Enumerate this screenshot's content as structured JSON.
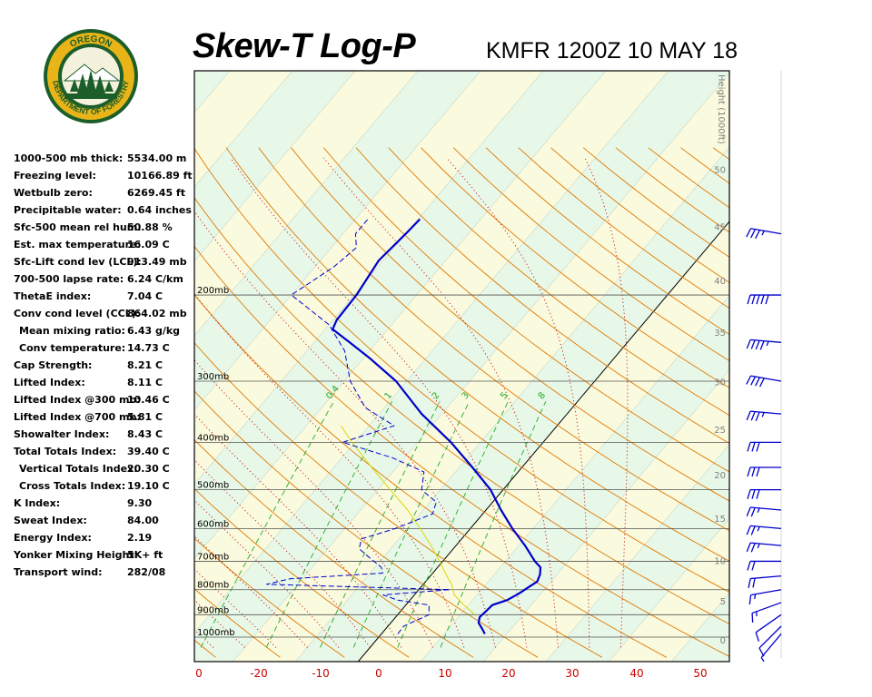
{
  "logo": {
    "text_top": "OREGON",
    "text_bottom": "DEPARTMENT OF FORESTRY",
    "colors": {
      "ring": "#1b5e2a",
      "gold": "#e8b418",
      "sky": "#f4f1dc"
    }
  },
  "header": {
    "title": "Skew-T Log-P",
    "subtitle": "KMFR 1200Z 10 MAY 18"
  },
  "indices": [
    {
      "label": "1000-500 mb thick:",
      "value": "5534.00 m"
    },
    {
      "label": "Freezing level:",
      "value": "10166.89 ft"
    },
    {
      "label": "Wetbulb zero:",
      "value": "6269.45 ft"
    },
    {
      "label": "Precipitable water:",
      "value": "0.64 inches"
    },
    {
      "label": "Sfc-500 mean rel hum:",
      "value": "50.88 %"
    },
    {
      "label": "Est. max temperature:",
      "value": "16.09 C"
    },
    {
      "label": "Sfc-Lift cond lev (LCL):",
      "value": "913.49 mb"
    },
    {
      "label": "700-500 lapse rate:",
      "value": "6.24 C/km"
    },
    {
      "label": "ThetaE index:",
      "value": "7.04 C"
    },
    {
      "label": "Conv cond level (CCL):",
      "value": "864.02 mb"
    },
    {
      "label": "Mean mixing ratio:",
      "value": "6.43 g/kg",
      "indent": true
    },
    {
      "label": "Conv temperature:",
      "value": "14.73 C",
      "indent": true
    },
    {
      "label": "Cap Strength:",
      "value": "8.21 C"
    },
    {
      "label": "Lifted Index:",
      "value": "8.11 C"
    },
    {
      "label": "Lifted Index @300 mb:",
      "value": "10.46 C"
    },
    {
      "label": "Lifted Index @700 mb:",
      "value": "5.81 C"
    },
    {
      "label": "Showalter Index:",
      "value": "8.43 C"
    },
    {
      "label": "Total Totals Index:",
      "value": "39.40 C"
    },
    {
      "label": "Vertical Totals Index:",
      "value": "20.30 C",
      "indent": true
    },
    {
      "label": "Cross Totals Index:",
      "value": "19.10 C",
      "indent": true
    },
    {
      "label": "K Index:",
      "value": "9.30"
    },
    {
      "label": "Sweat Index:",
      "value": "84.00"
    },
    {
      "label": "Energy Index:",
      "value": "2.19"
    },
    {
      "label": "Yonker Mixing Height:",
      "value": "5K+ ft"
    },
    {
      "label": "Transport wind:",
      "value": "282/08"
    }
  ],
  "chart_data": {
    "type": "line",
    "y_scale": "log-pressure",
    "pressure_levels": [
      {
        "p": 200,
        "label": "200mb"
      },
      {
        "p": 300,
        "label": "300mb"
      },
      {
        "p": 400,
        "label": "400mb"
      },
      {
        "p": 500,
        "label": "500mb"
      },
      {
        "p": 600,
        "label": "600mb"
      },
      {
        "p": 700,
        "label": "700mb"
      },
      {
        "p": 800,
        "label": "800mb"
      },
      {
        "p": 900,
        "label": "900mb"
      },
      {
        "p": 1000,
        "label": "1000mb"
      }
    ],
    "x_tick_labels": [
      "0",
      "-20",
      "-10",
      "0",
      "10",
      "20",
      "30",
      "40",
      "50"
    ],
    "height_axis_label": "Height (1000ft)",
    "height_ticks": [
      "0",
      "5",
      "10",
      "15",
      "20",
      "25",
      "30",
      "35",
      "40",
      "45",
      "50"
    ],
    "mixing_ratio_labels": [
      "0.4",
      "1",
      "2",
      "3",
      "5",
      "8"
    ],
    "series": [
      {
        "role": "temperature",
        "color": "#0000cc",
        "points": [
          {
            "p": 985,
            "t": 16.5
          },
          {
            "p": 960,
            "t": 15.3
          },
          {
            "p": 935,
            "t": 14.0
          },
          {
            "p": 910,
            "t": 13.4
          },
          {
            "p": 890,
            "t": 13.6
          },
          {
            "p": 860,
            "t": 13.8
          },
          {
            "p": 840,
            "t": 15.5
          },
          {
            "p": 815,
            "t": 16.5
          },
          {
            "p": 790,
            "t": 17.2
          },
          {
            "p": 770,
            "t": 17.8
          },
          {
            "p": 745,
            "t": 17.3
          },
          {
            "p": 720,
            "t": 16.4
          },
          {
            "p": 700,
            "t": 14.7
          },
          {
            "p": 650,
            "t": 11.0
          },
          {
            "p": 600,
            "t": 6.7
          },
          {
            "p": 550,
            "t": 2.4
          },
          {
            "p": 500,
            "t": -2.0
          },
          {
            "p": 450,
            "t": -7.9
          },
          {
            "p": 400,
            "t": -14.7
          },
          {
            "p": 350,
            "t": -23.2
          },
          {
            "p": 300,
            "t": -31.7
          },
          {
            "p": 270,
            "t": -38.8
          },
          {
            "p": 250,
            "t": -44.3
          },
          {
            "p": 235,
            "t": -48.8
          },
          {
            "p": 225,
            "t": -49.4
          },
          {
            "p": 200,
            "t": -49.6
          },
          {
            "p": 170,
            "t": -50.7
          },
          {
            "p": 150,
            "t": -50.0
          },
          {
            "p": 140,
            "t": -49.7
          }
        ]
      },
      {
        "role": "dewpoint",
        "color": "#0000cc",
        "points": [
          {
            "p": 985,
            "t": 2.6
          },
          {
            "p": 950,
            "t": 2.5
          },
          {
            "p": 900,
            "t": 5.0
          },
          {
            "p": 860,
            "t": 3.7
          },
          {
            "p": 840,
            "t": -2.0
          },
          {
            "p": 820,
            "t": -5.0
          },
          {
            "p": 800,
            "t": 5.0
          },
          {
            "p": 780,
            "t": -25.0
          },
          {
            "p": 760,
            "t": -22.0
          },
          {
            "p": 740,
            "t": -8.0
          },
          {
            "p": 720,
            "t": -9.0
          },
          {
            "p": 690,
            "t": -12.0
          },
          {
            "p": 660,
            "t": -15.0
          },
          {
            "p": 630,
            "t": -16.0
          },
          {
            "p": 600,
            "t": -12.0
          },
          {
            "p": 560,
            "t": -8.0
          },
          {
            "p": 530,
            "t": -9.0
          },
          {
            "p": 500,
            "t": -13.0
          },
          {
            "p": 460,
            "t": -15.0
          },
          {
            "p": 430,
            "t": -22.0
          },
          {
            "p": 400,
            "t": -32.0
          },
          {
            "p": 370,
            "t": -26.0
          },
          {
            "p": 340,
            "t": -33.0
          },
          {
            "p": 300,
            "t": -39.0
          },
          {
            "p": 260,
            "t": -44.0
          },
          {
            "p": 230,
            "t": -50.0
          },
          {
            "p": 200,
            "t": -60.0
          },
          {
            "p": 175,
            "t": -57.0
          },
          {
            "p": 160,
            "t": -56.0
          },
          {
            "p": 150,
            "t": -58.0
          },
          {
            "p": 140,
            "t": -58.0
          }
        ]
      },
      {
        "role": "parcel",
        "color": "#d8d800",
        "points": [
          {
            "p": 900,
            "t": 12.3
          },
          {
            "p": 860,
            "t": 9.3
          },
          {
            "p": 820,
            "t": 6.4
          },
          {
            "p": 780,
            "t": 4.5
          },
          {
            "p": 740,
            "t": 2.0
          },
          {
            "p": 700,
            "t": -0.5
          },
          {
            "p": 650,
            "t": -4.0
          },
          {
            "p": 600,
            "t": -8.0
          },
          {
            "p": 550,
            "t": -12.5
          },
          {
            "p": 500,
            "t": -18.0
          },
          {
            "p": 450,
            "t": -24.0
          },
          {
            "p": 400,
            "t": -30.5
          },
          {
            "p": 370,
            "t": -34.5
          }
        ]
      }
    ],
    "wind_barbs": [
      {
        "p": 985,
        "dir": 220,
        "spd": 5
      },
      {
        "p": 950,
        "dir": 225,
        "spd": 10
      },
      {
        "p": 900,
        "dir": 235,
        "spd": 10
      },
      {
        "p": 850,
        "dir": 250,
        "spd": 15
      },
      {
        "p": 800,
        "dir": 260,
        "spd": 15
      },
      {
        "p": 750,
        "dir": 265,
        "spd": 20
      },
      {
        "p": 700,
        "dir": 270,
        "spd": 20
      },
      {
        "p": 650,
        "dir": 275,
        "spd": 25
      },
      {
        "p": 600,
        "dir": 275,
        "spd": 25
      },
      {
        "p": 550,
        "dir": 275,
        "spd": 25
      },
      {
        "p": 500,
        "dir": 270,
        "spd": 30
      },
      {
        "p": 450,
        "dir": 270,
        "spd": 30
      },
      {
        "p": 400,
        "dir": 270,
        "spd": 30
      },
      {
        "p": 350,
        "dir": 275,
        "spd": 35
      },
      {
        "p": 300,
        "dir": 280,
        "spd": 40
      },
      {
        "p": 250,
        "dir": 275,
        "spd": 45
      },
      {
        "p": 200,
        "dir": 270,
        "spd": 50
      },
      {
        "p": 150,
        "dir": 280,
        "spd": 35
      }
    ]
  },
  "colors": {
    "background": "#ffffff",
    "band_light": "#e8f8e8",
    "band_yellow": "#fafade",
    "isobar": "#555555",
    "dry_adiabat": "#e07800",
    "moist_adiabat": "#c00000",
    "mixing_ratio": "#22aa22",
    "zero_isotherm": "#000000",
    "x_ticks": "#cc0000",
    "profile": "#0000cc",
    "parcel": "#d8d800"
  }
}
